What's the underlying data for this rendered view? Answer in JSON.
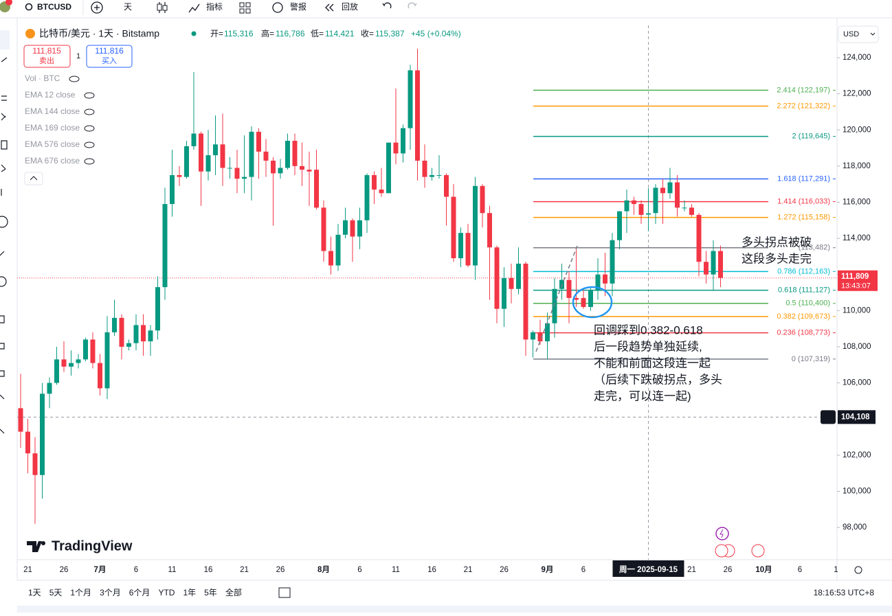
{
  "toolbar": {
    "symbol": "BTCUSD",
    "interval": "天",
    "indicators": "指标",
    "alerts": "警报",
    "replay": "回放"
  },
  "legend": {
    "title": "比特币/美元 · 1天 · Bitstamp",
    "open_key": "开=",
    "open": "115,316",
    "high_key": "高=",
    "high": "116,786",
    "low_key": "低=",
    "low": "114,421",
    "close_key": "收=",
    "close": "115,387",
    "change": "+45 (+0.04%)"
  },
  "trade": {
    "sell_price": "111,815",
    "sell": "卖出",
    "spread": "1",
    "buy_price": "111,816",
    "buy": "买入"
  },
  "studies": [
    "Vol · BTC",
    "EMA 12 close",
    "EMA 144 close",
    "EMA 169 close",
    "EMA 576 close",
    "EMA 676 close"
  ],
  "currency": "USD",
  "logo": "TradingView",
  "chart_data": {
    "type": "candlestick",
    "up_color": "#089981",
    "down_color": "#f23645",
    "ylim": [
      96215,
      125672
    ],
    "yticks": [
      {
        "value": 98000,
        "label": "98,000"
      },
      {
        "value": 100000,
        "label": "100,000"
      },
      {
        "value": 102000,
        "label": "102,000"
      },
      {
        "value": 104000,
        "label": "104,000"
      },
      {
        "value": 106000,
        "label": "106,000"
      },
      {
        "value": 108000,
        "label": "108,000"
      },
      {
        "value": 110000,
        "label": "110,000"
      },
      {
        "value": 112000,
        "label": "112,000"
      },
      {
        "value": 114000,
        "label": "114,000"
      },
      {
        "value": 116000,
        "label": "116,000"
      },
      {
        "value": 118000,
        "label": "118,000"
      },
      {
        "value": 120000,
        "label": "120,000"
      },
      {
        "value": 122000,
        "label": "122,000"
      },
      {
        "value": 124000,
        "label": "124,000"
      }
    ],
    "x_labels": [
      "21",
      "26",
      "7月",
      "6",
      "11",
      "16",
      "21",
      "26",
      "8月",
      "6",
      "11",
      "16",
      "21",
      "26",
      "9月",
      "6",
      "21",
      "26",
      "10月",
      "6",
      "1"
    ],
    "open": [
      104600,
      103300,
      102100,
      100900,
      105400,
      106000,
      107300,
      106900,
      107100,
      107300,
      108400,
      107100,
      105700,
      108800,
      109600,
      108000,
      108200,
      109200,
      108300,
      108900,
      111300,
      115900,
      117500,
      117400,
      119100,
      119800,
      117700,
      118600,
      119200,
      117900,
      117900,
      117300,
      117400,
      119900,
      118800,
      118300,
      117600,
      117900,
      119400,
      118000,
      117800,
      117800,
      115700,
      113300,
      112500,
      114200,
      115000,
      114100,
      115000,
      117500,
      116700,
      116500,
      119300,
      118700,
      120100,
      123300,
      118300,
      117400,
      117500,
      117500,
      116300,
      112900,
      114300,
      112500,
      116900,
      115400,
      113500,
      110100,
      111800,
      111200,
      112600,
      108400,
      108800,
      108300,
      109300,
      111200,
      111700,
      110700,
      110700,
      110200,
      111100,
      112000,
      111500,
      113900,
      115500,
      116100,
      115900,
      115316,
      115400,
      116800,
      116500,
      117100,
      115700,
      115700,
      115300,
      112700,
      112000,
      113300
    ],
    "high": [
      106500,
      104000,
      103000,
      106000,
      106300,
      108000,
      108300,
      107800,
      107600,
      108500,
      108800,
      107600,
      109700,
      110600,
      109800,
      108400,
      109800,
      109800,
      109200,
      111900,
      116800,
      118900,
      118000,
      119400,
      123200,
      119900,
      120000,
      120800,
      120900,
      118500,
      118900,
      119700,
      120200,
      120100,
      119500,
      118500,
      118400,
      119800,
      119800,
      119300,
      118800,
      118900,
      116100,
      114100,
      114800,
      115700,
      115100,
      115700,
      117600,
      117700,
      117900,
      119300,
      122300,
      120300,
      123600,
      124500,
      119200,
      117900,
      118600,
      117600,
      117000,
      114600,
      114800,
      117400,
      117000,
      115800,
      113600,
      112400,
      112600,
      113500,
      112700,
      108900,
      109500,
      109900,
      111800,
      112600,
      112200,
      113400,
      111200,
      111300,
      112900,
      113200,
      114300,
      115500,
      116700,
      116300,
      116100,
      116786,
      117000,
      117300,
      117900,
      117500,
      116100,
      115900,
      115400,
      113300,
      113900,
      113600
    ],
    "low": [
      102400,
      101000,
      98200,
      99600,
      104600,
      105900,
      106600,
      106400,
      106800,
      107200,
      106800,
      105300,
      105100,
      108600,
      107300,
      107800,
      107800,
      107500,
      107500,
      108400,
      110600,
      115200,
      116900,
      117300,
      118900,
      115800,
      117200,
      117500,
      116900,
      117300,
      116500,
      116500,
      116100,
      117300,
      117400,
      114700,
      117300,
      117800,
      117500,
      116900,
      115800,
      115600,
      112700,
      112000,
      112200,
      114000,
      112700,
      113400,
      114300,
      115900,
      116300,
      116500,
      118100,
      118200,
      118900,
      117200,
      116800,
      117200,
      117300,
      114700,
      112700,
      112400,
      112400,
      111700,
      114600,
      110600,
      109300,
      109100,
      110400,
      110900,
      107500,
      107400,
      108100,
      107300,
      108500,
      110600,
      109300,
      110200,
      110100,
      110000,
      110600,
      110800,
      110800,
      113400,
      114300,
      115300,
      114800,
      114421,
      114800,
      114800,
      116200,
      115200,
      115500,
      115200,
      111900,
      111500,
      111100,
      111300
    ],
    "close": [
      103300,
      102100,
      100900,
      105400,
      106000,
      107300,
      106900,
      107100,
      107300,
      108400,
      107100,
      105700,
      108800,
      109600,
      108000,
      108200,
      109200,
      108300,
      108900,
      111300,
      115900,
      117500,
      117400,
      119100,
      119800,
      117700,
      118600,
      119200,
      117900,
      117900,
      117300,
      117400,
      119900,
      118800,
      118300,
      117600,
      117900,
      119400,
      118000,
      117800,
      117700,
      115700,
      113300,
      112500,
      114200,
      115000,
      114100,
      115000,
      117500,
      116700,
      116500,
      119300,
      118700,
      120100,
      123300,
      118300,
      117400,
      117500,
      117500,
      116300,
      112900,
      114300,
      112500,
      116900,
      115400,
      113500,
      110100,
      111800,
      111200,
      112600,
      108400,
      108800,
      108300,
      109300,
      111200,
      111700,
      110700,
      110600,
      110200,
      111100,
      112000,
      111500,
      113900,
      115500,
      116100,
      115900,
      115300,
      115387,
      116800,
      116500,
      117100,
      115700,
      115700,
      115300,
      112700,
      112000,
      113300,
      111809
    ],
    "fib_levels": [
      {
        "label": "2.414 (122,197)",
        "value": 122197,
        "color": "#4caf50"
      },
      {
        "label": "2.272 (121,322)",
        "value": 121322,
        "color": "#ff9800"
      },
      {
        "label": "2 (119,645)",
        "value": 119645,
        "color": "#089981"
      },
      {
        "label": "1.618 (117,291)",
        "value": 117291,
        "color": "#2962ff"
      },
      {
        "label": "1.414 (116,033)",
        "value": 116033,
        "color": "#f23645"
      },
      {
        "label": "1.272 (115,158)",
        "value": 115158,
        "color": "#ff9800"
      },
      {
        "label": "(113,482)",
        "value": 113482,
        "color": "#787b86"
      },
      {
        "label": "0.786 (112,163)",
        "value": 112163,
        "color": "#00bcd4"
      },
      {
        "label": "0.618 (111,127)",
        "value": 111127,
        "color": "#089981"
      },
      {
        "label": "0.5 (110,400)",
        "value": 110400,
        "color": "#4caf50"
      },
      {
        "label": "0.382 (109,673)",
        "value": 109673,
        "color": "#ff9800"
      },
      {
        "label": "0.236 (108,773)",
        "value": 108773,
        "color": "#f23645"
      },
      {
        "label": "0 (107,319)",
        "value": 107319,
        "color": "#787b86"
      }
    ],
    "last_price": {
      "value": 111809,
      "label": "111,809",
      "countdown": "13:43:07"
    },
    "crosshair": {
      "value": 104108,
      "label": "104,108",
      "date": "周一 2025-09-15"
    },
    "annotations": {
      "top": [
        "多头拐点被破",
        "这段多头走完"
      ],
      "bottom": [
        "回调踩到0.382-0.618",
        "后一段趋势单独延续,",
        "不能和前面这段连一起",
        "（后续下跌破拐点，多头",
        "走完，可以连一起)"
      ]
    }
  },
  "bottom_bar": {
    "ranges": [
      "1天",
      "5天",
      "1个月",
      "3个月",
      "6个月",
      "YTD",
      "1年",
      "5年",
      "全部"
    ],
    "clock": "18:16:53 UTC+8"
  }
}
